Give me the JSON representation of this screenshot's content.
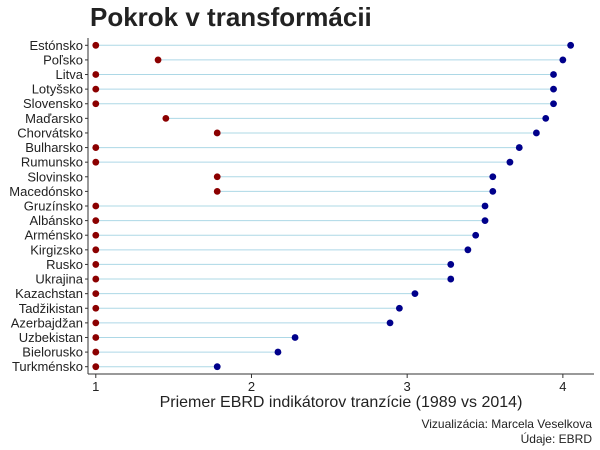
{
  "title": "Pokrok v transformácii",
  "caption": {
    "line1": "Vizualizácia: Marcela Veselkova",
    "line2": "Údaje: EBRD"
  },
  "chart_data": {
    "type": "dumbbell",
    "title": "Pokrok v transformácii",
    "xlabel": "Priemer EBRD indikátorov tranzície (1989 vs 2014)",
    "ylabel": "",
    "xlim": [
      0.95,
      4.2
    ],
    "xticks": [
      1,
      2,
      3,
      4
    ],
    "grid": false,
    "colors": {
      "1989": "#8b0000",
      "2014": "#00008b",
      "connector": "#add8e6"
    },
    "categories": [
      "Estónsko",
      "Poľsko",
      "Litva",
      "Lotyšsko",
      "Slovensko",
      "Maďarsko",
      "Chorvátsko",
      "Bulharsko",
      "Rumunsko",
      "Slovinsko",
      "Macedónsko",
      "Gruzínsko",
      "Albánsko",
      "Arménsko",
      "Kirgizsko",
      "Rusko",
      "Ukrajina",
      "Kazachstan",
      "Tadžikistan",
      "Azerbajdžan",
      "Uzbekistan",
      "Bielorusko",
      "Turkménsko"
    ],
    "series": [
      {
        "key": "1989",
        "values": [
          1.0,
          1.4,
          1.0,
          1.0,
          1.0,
          1.45,
          1.78,
          1.0,
          1.0,
          1.78,
          1.78,
          1.0,
          1.0,
          1.0,
          1.0,
          1.0,
          1.0,
          1.0,
          1.0,
          1.0,
          1.0,
          1.0,
          1.0
        ]
      },
      {
        "key": "2014",
        "values": [
          4.05,
          4.0,
          3.94,
          3.94,
          3.94,
          3.89,
          3.83,
          3.72,
          3.66,
          3.55,
          3.55,
          3.5,
          3.5,
          3.44,
          3.39,
          3.28,
          3.28,
          3.05,
          2.95,
          2.89,
          2.28,
          2.17,
          1.78
        ]
      }
    ]
  }
}
